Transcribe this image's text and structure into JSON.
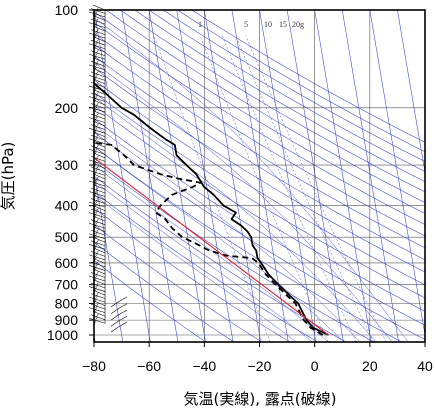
{
  "chart_data": {
    "type": "line",
    "diagram": "skew-T log-p",
    "xlabel": "気温(実線), 露点(破線)",
    "ylabel": "気圧(hPa)",
    "xlim": [
      -80,
      40
    ],
    "ylim": [
      1050,
      100
    ],
    "y_scale": "log",
    "grid": true,
    "x_ticks": [
      -80,
      -60,
      -40,
      -20,
      0,
      20,
      40
    ],
    "x_tick_labels": [
      "−80",
      "−60",
      "−40",
      "−20",
      "0",
      "20",
      "40"
    ],
    "y_ticks": [
      100,
      200,
      300,
      400,
      500,
      600,
      700,
      800,
      900,
      1000
    ],
    "y_tick_labels": [
      "100",
      "200",
      "300",
      "400",
      "500",
      "600",
      "700",
      "800",
      "900",
      "1000"
    ],
    "mixing_ratio_labels": [
      "1",
      "5",
      "10",
      "15",
      "20g"
    ],
    "mixing_ratios_g_per_kg": [
      1,
      5,
      10,
      15,
      20
    ],
    "series": [
      {
        "role": "temperature",
        "style": "solid",
        "color": "#000000",
        "points": [
          [
            5,
            1000
          ],
          [
            0,
            950
          ],
          [
            -2,
            900
          ],
          [
            -3,
            850
          ],
          [
            -4,
            800
          ],
          [
            -7,
            750
          ],
          [
            -10,
            700
          ],
          [
            -13,
            650
          ],
          [
            -15,
            600
          ],
          [
            -16,
            580
          ],
          [
            -16,
            550
          ],
          [
            -17,
            530
          ],
          [
            -17,
            500
          ],
          [
            -18,
            480
          ],
          [
            -20,
            460
          ],
          [
            -23,
            440
          ],
          [
            -21,
            420
          ],
          [
            -25,
            400
          ],
          [
            -28,
            370
          ],
          [
            -31,
            350
          ],
          [
            -33,
            320
          ],
          [
            -36,
            300
          ],
          [
            -39,
            280
          ],
          [
            -39,
            260
          ],
          [
            -42,
            250
          ],
          [
            -47,
            230
          ],
          [
            -52,
            210
          ],
          [
            -56,
            200
          ],
          [
            -61,
            180
          ],
          [
            -64,
            170
          ],
          [
            -66,
            160
          ],
          [
            -67,
            150
          ],
          [
            -68,
            140
          ],
          [
            -67,
            130
          ],
          [
            -68,
            120
          ],
          [
            -69,
            110
          ],
          [
            -69,
            100
          ]
        ]
      },
      {
        "role": "dew point",
        "style": "dashed",
        "color": "#000000",
        "points": [
          [
            3,
            1000
          ],
          [
            -1,
            950
          ],
          [
            -3,
            900
          ],
          [
            -4,
            850
          ],
          [
            -5,
            800
          ],
          [
            -8,
            750
          ],
          [
            -11,
            700
          ],
          [
            -14,
            650
          ],
          [
            -16,
            600
          ],
          [
            -18,
            580
          ],
          [
            -27,
            570
          ],
          [
            -33,
            550
          ],
          [
            -38,
            520
          ],
          [
            -42,
            500
          ],
          [
            -45,
            470
          ],
          [
            -47,
            440
          ],
          [
            -50,
            420
          ],
          [
            -48,
            400
          ],
          [
            -43,
            370
          ],
          [
            -35,
            350
          ],
          [
            -32,
            340
          ],
          [
            -40,
            330
          ],
          [
            -46,
            320
          ],
          [
            -55,
            300
          ],
          [
            -58,
            280
          ],
          [
            -62,
            260
          ],
          [
            -70,
            255
          ],
          [
            -85,
            255
          ]
        ]
      },
      {
        "role": "lifted parcel",
        "style": "solid",
        "color": "#dd2233",
        "points": [
          [
            5,
            1000
          ],
          [
            -90,
            200
          ]
        ]
      }
    ],
    "wind_barbs": {
      "side": "left",
      "column_temperature": -76,
      "pressure_top": 100,
      "pressure_bottom": 920,
      "count": 90,
      "low_level_vectors": 5
    }
  }
}
